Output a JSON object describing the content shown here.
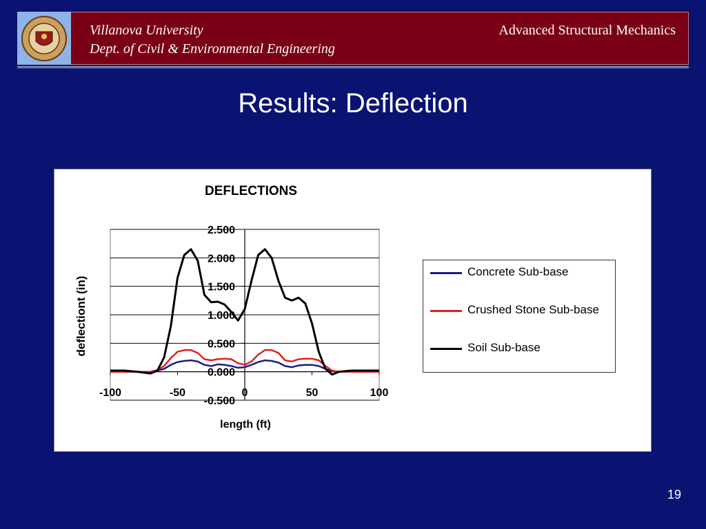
{
  "header": {
    "university": "Villanova University",
    "department": "Dept. of Civil & Environmental Engineering",
    "course": "Advanced Structural Mechanics"
  },
  "slide": {
    "title": "Results: Deflection",
    "page_number": "19"
  },
  "colors": {
    "background": "#0a1272",
    "header_bar": "#7a0016",
    "concrete": "#1a1a8c",
    "crushed_stone": "#e02020",
    "soil": "#000000"
  },
  "chart_data": {
    "type": "line",
    "title": "DEFLECTIONS",
    "xlabel": "length (ft)",
    "ylabel": "deflectiont (in)",
    "xlim": [
      -100,
      100
    ],
    "ylim": [
      -0.5,
      2.5
    ],
    "x_ticks": [
      "-100",
      "-50",
      "0",
      "50",
      "100"
    ],
    "y_ticks": [
      "2.500",
      "2.000",
      "1.500",
      "1.000",
      "0.500",
      "0.000",
      "-0.500"
    ],
    "grid": "horizontal",
    "legend_position": "right",
    "x": [
      -100,
      -90,
      -80,
      -70,
      -65,
      -60,
      -55,
      -50,
      -45,
      -40,
      -35,
      -30,
      -25,
      -20,
      -15,
      -10,
      -5,
      0,
      5,
      10,
      15,
      20,
      25,
      30,
      35,
      40,
      45,
      50,
      55,
      60,
      65,
      70,
      75,
      80,
      90,
      100
    ],
    "series": [
      {
        "name": "Concrete Sub-base",
        "color": "#1a1a8c",
        "values": [
          0,
          0,
          0,
          0,
          0.02,
          0.05,
          0.12,
          0.17,
          0.19,
          0.2,
          0.18,
          0.12,
          0.1,
          0.13,
          0.12,
          0.1,
          0.07,
          0.08,
          0.12,
          0.17,
          0.2,
          0.19,
          0.16,
          0.1,
          0.08,
          0.11,
          0.12,
          0.12,
          0.1,
          0.05,
          0.01,
          0,
          0,
          0,
          0,
          0
        ]
      },
      {
        "name": "Crushed Stone Sub-base",
        "color": "#e02020",
        "values": [
          0,
          0,
          0,
          0,
          0.03,
          0.1,
          0.24,
          0.35,
          0.38,
          0.38,
          0.33,
          0.22,
          0.2,
          0.22,
          0.23,
          0.22,
          0.15,
          0.12,
          0.18,
          0.3,
          0.38,
          0.38,
          0.33,
          0.2,
          0.18,
          0.22,
          0.23,
          0.23,
          0.2,
          0.1,
          0.02,
          0,
          0,
          0,
          0,
          0
        ]
      },
      {
        "name": "Soil Sub-base",
        "color": "#000000",
        "values": [
          0.02,
          0.02,
          0,
          -0.03,
          0.02,
          0.25,
          0.8,
          1.65,
          2.05,
          2.15,
          1.95,
          1.35,
          1.22,
          1.23,
          1.18,
          1.05,
          0.9,
          1.1,
          1.6,
          2.05,
          2.15,
          2.0,
          1.6,
          1.3,
          1.25,
          1.3,
          1.2,
          0.85,
          0.35,
          0.05,
          -0.05,
          0,
          0.01,
          0.02,
          0.02,
          0.02
        ]
      }
    ]
  }
}
